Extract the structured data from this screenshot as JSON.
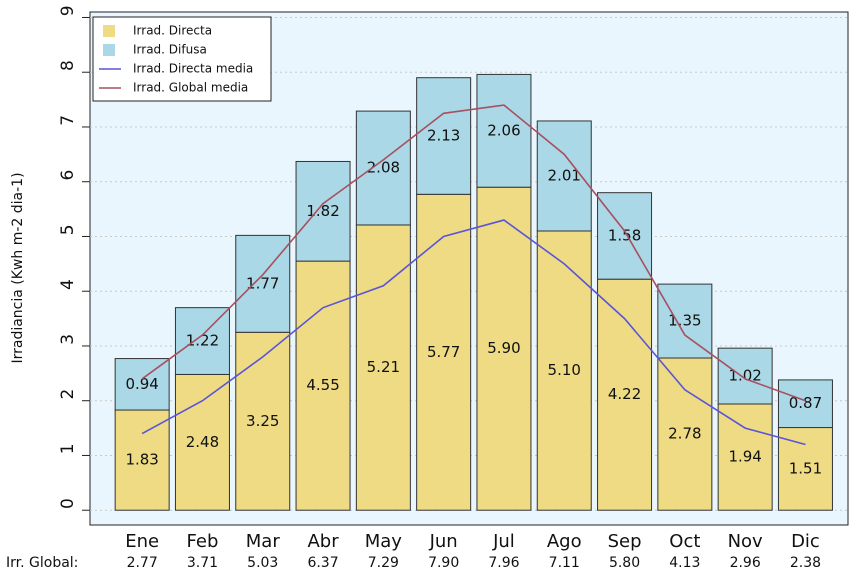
{
  "chart_data": {
    "type": "bar",
    "stacked": true,
    "y_label": "Irradiancia (Kwh m-2 dia-1)",
    "categories": [
      "Ene",
      "Feb",
      "Mar",
      "Abr",
      "May",
      "Jun",
      "Jul",
      "Ago",
      "Sep",
      "Oct",
      "Nov",
      "Dic"
    ],
    "series": [
      {
        "name": "Irrad. Directa",
        "type": "bar",
        "color": "#eedb83",
        "values": [
          1.83,
          2.48,
          3.25,
          4.55,
          5.21,
          5.77,
          5.9,
          5.1,
          4.22,
          2.78,
          1.94,
          1.51
        ],
        "value_labels": [
          "1.83",
          "2.48",
          "3.25",
          "4.55",
          "5.21",
          "5.77",
          "5.90",
          "5.10",
          "4.22",
          "2.78",
          "1.94",
          "1.51"
        ]
      },
      {
        "name": "Irrad. Difusa",
        "type": "bar",
        "color": "#aad8e6",
        "values": [
          0.94,
          1.22,
          1.77,
          1.82,
          2.08,
          2.13,
          2.06,
          2.01,
          1.58,
          1.35,
          1.02,
          0.87
        ],
        "value_labels": [
          "0.94",
          "1.22",
          "1.77",
          "1.82",
          "2.08",
          "2.13",
          "2.06",
          "2.01",
          "1.58",
          "1.35",
          "1.02",
          "0.87"
        ]
      },
      {
        "name": "Irrad. Directa media",
        "type": "line",
        "color": "#5a55d8",
        "values": [
          1.4,
          2.0,
          2.8,
          3.7,
          4.1,
          5.0,
          5.3,
          4.5,
          3.5,
          2.2,
          1.5,
          1.2
        ]
      },
      {
        "name": "Irrad. Global media",
        "type": "line",
        "color": "#a85060",
        "values": [
          2.4,
          3.2,
          4.3,
          5.6,
          6.4,
          7.25,
          7.4,
          6.5,
          5.1,
          3.2,
          2.4,
          2.0
        ]
      }
    ],
    "global": {
      "name": "Irr. Global:",
      "color": "#b03030",
      "values": [
        2.77,
        3.71,
        5.03,
        6.37,
        7.29,
        7.9,
        7.96,
        7.11,
        5.8,
        4.13,
        2.96,
        2.38
      ],
      "value_labels": [
        "2.77",
        "3.71",
        "5.03",
        "6.37",
        "7.29",
        "7.90",
        "7.96",
        "7.11",
        "5.80",
        "4.13",
        "2.96",
        "2.38"
      ]
    },
    "ylim": [
      -0.27,
      9.1
    ],
    "yticks": [
      0,
      1,
      2,
      3,
      4,
      5,
      6,
      7,
      8,
      9
    ],
    "grid": true,
    "legend": "top-left"
  }
}
